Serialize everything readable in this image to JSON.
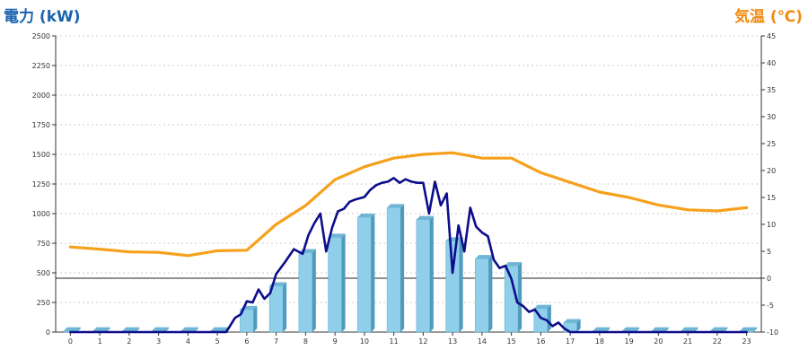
{
  "chart_data": {
    "type": "bar",
    "title_left": "電力 (kW)",
    "title_right": "気温 (℃)",
    "categories": [
      "0",
      "1",
      "2",
      "3",
      "4",
      "5",
      "6",
      "7",
      "8",
      "9",
      "10",
      "11",
      "12",
      "13",
      "14",
      "15",
      "16",
      "17",
      "18",
      "19",
      "20",
      "21",
      "22",
      "23"
    ],
    "y_left": {
      "min": 0,
      "max": 2500,
      "ticks": [
        0,
        250,
        500,
        750,
        1000,
        1250,
        1500,
        1750,
        2000,
        2250,
        2500
      ]
    },
    "y_right": {
      "min": -10,
      "max": 45,
      "ticks": [
        -10,
        -5,
        0,
        5,
        10,
        15,
        20,
        25,
        30,
        35,
        40,
        45
      ]
    },
    "grid": true,
    "series": [
      {
        "kind": "bar",
        "axis": "left",
        "color": "#8fcfea",
        "values": [
          10,
          10,
          10,
          10,
          10,
          10,
          190,
          390,
          670,
          800,
          970,
          1050,
          950,
          770,
          620,
          560,
          200,
          80,
          10,
          10,
          10,
          10,
          10,
          10
        ]
      },
      {
        "kind": "line",
        "axis": "left",
        "color": "#0d0d8c",
        "x": [
          0,
          1,
          2,
          3,
          4,
          5,
          5.3,
          5.6,
          5.8,
          6.0,
          6.2,
          6.4,
          6.6,
          6.8,
          7.0,
          7.3,
          7.6,
          7.9,
          8.1,
          8.3,
          8.5,
          8.7,
          8.9,
          9.1,
          9.3,
          9.5,
          9.7,
          10.0,
          10.2,
          10.4,
          10.6,
          10.8,
          11.0,
          11.2,
          11.4,
          11.6,
          11.8,
          12.0,
          12.2,
          12.4,
          12.6,
          12.8,
          13.0,
          13.2,
          13.4,
          13.6,
          13.8,
          14.0,
          14.2,
          14.4,
          14.6,
          14.8,
          15.0,
          15.2,
          15.4,
          15.6,
          15.8,
          16.0,
          16.2,
          16.4,
          16.6,
          16.8,
          17.0,
          17.2,
          17.4,
          18,
          19,
          20,
          21,
          22,
          23
        ],
        "values": [
          0,
          0,
          0,
          0,
          0,
          0,
          0,
          120,
          150,
          260,
          250,
          360,
          280,
          330,
          490,
          590,
          700,
          660,
          820,
          920,
          1000,
          680,
          880,
          1020,
          1040,
          1100,
          1120,
          1140,
          1200,
          1240,
          1260,
          1270,
          1300,
          1260,
          1290,
          1270,
          1260,
          1260,
          1000,
          1270,
          1070,
          1170,
          500,
          900,
          680,
          1050,
          890,
          840,
          810,
          610,
          540,
          560,
          450,
          250,
          220,
          170,
          190,
          120,
          100,
          50,
          80,
          30,
          0,
          0,
          0,
          0,
          0,
          0,
          0,
          0,
          0
        ],
        "note_axis": "left"
      },
      {
        "kind": "line",
        "axis": "right",
        "color": "#f5a11c",
        "x": [
          0,
          1,
          2,
          3,
          4,
          5,
          6,
          7,
          8,
          9,
          10,
          11,
          12,
          13,
          14,
          15,
          16,
          17,
          18,
          19,
          20,
          21,
          22,
          23
        ],
        "values": [
          5.8,
          5.4,
          4.9,
          4.8,
          4.2,
          5.1,
          5.2,
          10.0,
          13.5,
          18.3,
          20.7,
          22.3,
          23.0,
          23.3,
          22.3,
          22.3,
          19.6,
          17.8,
          16.0,
          15.0,
          13.6,
          12.7,
          12.5,
          13.1
        ]
      }
    ]
  }
}
